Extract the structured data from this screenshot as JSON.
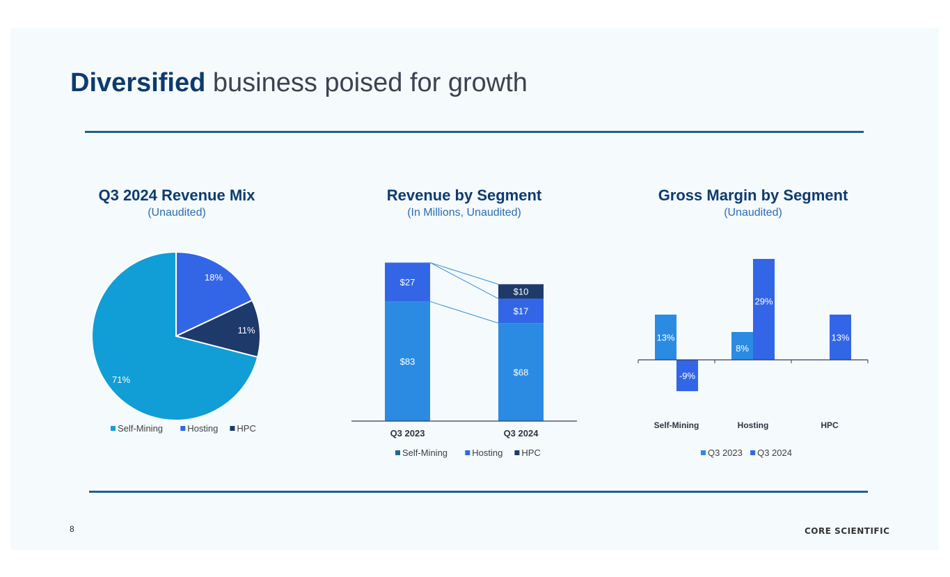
{
  "slide": {
    "title_bold": "Diversified",
    "title_rest": " business poised for growth",
    "page_number": "8",
    "logo_text": "CORE SCIENTIFIC"
  },
  "colors": {
    "self_mining_pie": "#119ed6",
    "self_mining_bar": "#2b8be2",
    "self_mining_legend_bar": "#1f6b8a",
    "hosting": "#3366e6",
    "hpc": "#1d3a6b",
    "q3_2023": "#2b8be2",
    "q3_2024": "#3366e6",
    "navy": "#0d3b6e"
  },
  "chart_data": [
    {
      "type": "pie",
      "title": "Q3 2024 Revenue Mix",
      "subtitle": "(Unaudited)",
      "categories": [
        "Self-Mining",
        "Hosting",
        "HPC"
      ],
      "values": [
        71,
        18,
        11
      ],
      "labels": [
        "71%",
        "18%",
        "11%"
      ],
      "legend": [
        "Self-Mining",
        "Hosting",
        "HPC"
      ],
      "legend_position": "bottom"
    },
    {
      "type": "bar",
      "stacked": true,
      "title": "Revenue by Segment",
      "subtitle": "(In Millions, Unaudited)",
      "categories": [
        "Q3 2023",
        "Q3 2024"
      ],
      "series": [
        {
          "name": "Self-Mining",
          "values": [
            83,
            68
          ],
          "labels": [
            "$83",
            "$68"
          ]
        },
        {
          "name": "Hosting",
          "values": [
            27,
            17
          ],
          "labels": [
            "$27",
            "$17"
          ]
        },
        {
          "name": "HPC",
          "values": [
            0,
            10
          ],
          "labels": [
            "",
            "$10"
          ]
        }
      ],
      "ylim": [
        0,
        110
      ],
      "legend_position": "bottom"
    },
    {
      "type": "bar",
      "title": "Gross Margin by Segment",
      "subtitle": "(Unaudited)",
      "categories": [
        "Self-Mining",
        "Hosting",
        "HPC"
      ],
      "series": [
        {
          "name": "Q3 2023",
          "values": [
            13,
            8,
            null
          ],
          "labels": [
            "13%",
            "8%",
            ""
          ]
        },
        {
          "name": "Q3 2024",
          "values": [
            -9,
            29,
            13
          ],
          "labels": [
            "-9%",
            "29%",
            "13%"
          ]
        }
      ],
      "ylim": [
        -10,
        30
      ],
      "legend_position": "bottom"
    }
  ]
}
